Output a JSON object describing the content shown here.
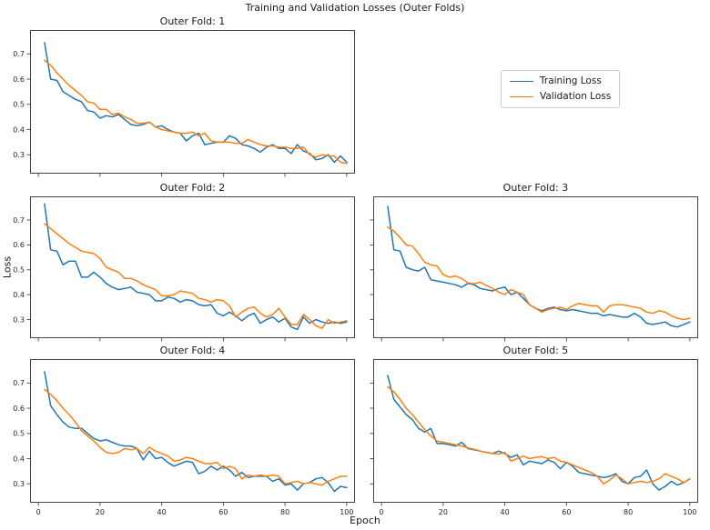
{
  "chart_data": {
    "type": "line",
    "suptitle": "Training and Validation Losses (Outer Folds)",
    "xlabel": "Epoch",
    "ylabel": "Loss",
    "grid": false,
    "legend": {
      "position": "figure upper right",
      "entries": [
        {
          "label": "Training Loss",
          "color": "#1f77b4"
        },
        {
          "label": "Validation Loss",
          "color": "#ff7f0e"
        }
      ]
    },
    "x": [
      2,
      4,
      6,
      8,
      10,
      12,
      14,
      16,
      18,
      20,
      22,
      24,
      26,
      28,
      30,
      32,
      34,
      36,
      38,
      40,
      42,
      44,
      46,
      48,
      50,
      52,
      54,
      56,
      58,
      60,
      62,
      64,
      66,
      68,
      70,
      72,
      74,
      76,
      78,
      80,
      82,
      84,
      86,
      88,
      90,
      92,
      94,
      96,
      98,
      100
    ],
    "axes": [
      {
        "title": "Outer Fold: 1",
        "xlim": [
          -2.7,
          102.7
        ],
        "ylim": [
          0.225,
          0.795
        ],
        "xticks": [
          0,
          20,
          40,
          60,
          80,
          100
        ],
        "yticks": [
          0.3,
          0.4,
          0.5,
          0.6,
          0.7
        ],
        "show_xtick_labels": false,
        "show_ytick_labels": true,
        "series": [
          {
            "name": "Training Loss",
            "color": "#1f77b4",
            "values": [
              0.745,
              0.6,
              0.595,
              0.55,
              0.535,
              0.52,
              0.51,
              0.475,
              0.47,
              0.445,
              0.455,
              0.45,
              0.46,
              0.44,
              0.42,
              0.415,
              0.42,
              0.43,
              0.41,
              0.415,
              0.4,
              0.39,
              0.385,
              0.355,
              0.375,
              0.385,
              0.34,
              0.345,
              0.35,
              0.35,
              0.375,
              0.365,
              0.34,
              0.335,
              0.325,
              0.31,
              0.33,
              0.34,
              0.325,
              0.325,
              0.305,
              0.34,
              0.315,
              0.305,
              0.28,
              0.285,
              0.3,
              0.27,
              0.295,
              0.27
            ]
          },
          {
            "name": "Validation Loss",
            "color": "#ff7f0e",
            "values": [
              0.675,
              0.655,
              0.625,
              0.6,
              0.575,
              0.555,
              0.535,
              0.51,
              0.505,
              0.48,
              0.48,
              0.46,
              0.465,
              0.45,
              0.44,
              0.425,
              0.425,
              0.43,
              0.41,
              0.4,
              0.395,
              0.39,
              0.385,
              0.385,
              0.39,
              0.375,
              0.385,
              0.355,
              0.35,
              0.35,
              0.35,
              0.345,
              0.345,
              0.36,
              0.35,
              0.34,
              0.335,
              0.335,
              0.33,
              0.33,
              0.325,
              0.325,
              0.33,
              0.3,
              0.29,
              0.3,
              0.295,
              0.295,
              0.27,
              0.265
            ]
          }
        ]
      },
      {
        "title": "Outer Fold: 2",
        "xlim": [
          -2.7,
          102.7
        ],
        "ylim": [
          0.225,
          0.795
        ],
        "xticks": [
          0,
          20,
          40,
          60,
          80,
          100
        ],
        "yticks": [
          0.3,
          0.4,
          0.5,
          0.6,
          0.7
        ],
        "show_xtick_labels": false,
        "show_ytick_labels": true,
        "series": [
          {
            "name": "Training Loss",
            "color": "#1f77b4",
            "values": [
              0.765,
              0.58,
              0.575,
              0.52,
              0.535,
              0.535,
              0.47,
              0.47,
              0.49,
              0.47,
              0.445,
              0.43,
              0.42,
              0.425,
              0.43,
              0.41,
              0.405,
              0.4,
              0.375,
              0.375,
              0.39,
              0.385,
              0.37,
              0.38,
              0.375,
              0.36,
              0.355,
              0.36,
              0.325,
              0.315,
              0.33,
              0.315,
              0.295,
              0.315,
              0.325,
              0.285,
              0.3,
              0.31,
              0.29,
              0.305,
              0.27,
              0.26,
              0.31,
              0.285,
              0.3,
              0.29,
              0.285,
              0.29,
              0.285,
              0.29
            ]
          },
          {
            "name": "Validation Loss",
            "color": "#ff7f0e",
            "values": [
              0.685,
              0.665,
              0.645,
              0.625,
              0.605,
              0.59,
              0.575,
              0.57,
              0.565,
              0.545,
              0.51,
              0.5,
              0.49,
              0.465,
              0.465,
              0.455,
              0.44,
              0.43,
              0.42,
              0.395,
              0.395,
              0.4,
              0.415,
              0.41,
              0.405,
              0.385,
              0.38,
              0.37,
              0.38,
              0.375,
              0.355,
              0.31,
              0.33,
              0.345,
              0.35,
              0.325,
              0.31,
              0.32,
              0.345,
              0.31,
              0.28,
              0.28,
              0.32,
              0.3,
              0.275,
              0.265,
              0.3,
              0.285,
              0.29,
              0.295
            ]
          }
        ]
      },
      {
        "title": "Outer Fold: 3",
        "xlim": [
          -2.7,
          102.7
        ],
        "ylim": [
          0.225,
          0.795
        ],
        "xticks": [
          0,
          20,
          40,
          60,
          80,
          100
        ],
        "yticks": [
          0.3,
          0.4,
          0.5,
          0.6,
          0.7
        ],
        "show_xtick_labels": false,
        "show_ytick_labels": false,
        "series": [
          {
            "name": "Training Loss",
            "color": "#1f77b4",
            "values": [
              0.755,
              0.58,
              0.575,
              0.51,
              0.5,
              0.495,
              0.51,
              0.46,
              0.455,
              0.45,
              0.445,
              0.44,
              0.43,
              0.445,
              0.44,
              0.425,
              0.42,
              0.415,
              0.425,
              0.43,
              0.4,
              0.41,
              0.385,
              0.36,
              0.345,
              0.335,
              0.345,
              0.35,
              0.34,
              0.335,
              0.34,
              0.335,
              0.33,
              0.325,
              0.325,
              0.315,
              0.32,
              0.315,
              0.31,
              0.31,
              0.325,
              0.31,
              0.285,
              0.28,
              0.285,
              0.29,
              0.275,
              0.27,
              0.28,
              0.29
            ]
          },
          {
            "name": "Validation Loss",
            "color": "#ff7f0e",
            "values": [
              0.672,
              0.655,
              0.63,
              0.6,
              0.595,
              0.565,
              0.53,
              0.52,
              0.515,
              0.48,
              0.47,
              0.475,
              0.465,
              0.447,
              0.444,
              0.45,
              0.437,
              0.425,
              0.41,
              0.4,
              0.42,
              0.41,
              0.4,
              0.36,
              0.345,
              0.33,
              0.34,
              0.345,
              0.35,
              0.34,
              0.355,
              0.365,
              0.36,
              0.355,
              0.355,
              0.33,
              0.355,
              0.36,
              0.36,
              0.355,
              0.35,
              0.345,
              0.33,
              0.325,
              0.335,
              0.33,
              0.315,
              0.305,
              0.3,
              0.305
            ]
          }
        ]
      },
      {
        "title": "Outer Fold: 4",
        "xlim": [
          -2.7,
          102.7
        ],
        "ylim": [
          0.225,
          0.795
        ],
        "xticks": [
          0,
          20,
          40,
          60,
          80,
          100
        ],
        "yticks": [
          0.3,
          0.4,
          0.5,
          0.6,
          0.7
        ],
        "show_xtick_labels": true,
        "show_ytick_labels": true,
        "series": [
          {
            "name": "Training Loss",
            "color": "#1f77b4",
            "values": [
              0.745,
              0.61,
              0.575,
              0.545,
              0.525,
              0.52,
              0.52,
              0.5,
              0.48,
              0.47,
              0.475,
              0.465,
              0.455,
              0.45,
              0.45,
              0.44,
              0.395,
              0.43,
              0.4,
              0.405,
              0.385,
              0.37,
              0.38,
              0.39,
              0.385,
              0.34,
              0.35,
              0.37,
              0.355,
              0.37,
              0.355,
              0.33,
              0.345,
              0.325,
              0.33,
              0.33,
              0.33,
              0.31,
              0.32,
              0.295,
              0.3,
              0.275,
              0.3,
              0.305,
              0.32,
              0.325,
              0.305,
              0.27,
              0.29,
              0.285
            ]
          },
          {
            "name": "Validation Loss",
            "color": "#ff7f0e",
            "values": [
              0.675,
              0.655,
              0.63,
              0.6,
              0.575,
              0.545,
              0.51,
              0.49,
              0.47,
              0.445,
              0.425,
              0.42,
              0.425,
              0.44,
              0.435,
              0.44,
              0.42,
              0.445,
              0.43,
              0.42,
              0.41,
              0.39,
              0.395,
              0.405,
              0.4,
              0.39,
              0.38,
              0.38,
              0.385,
              0.36,
              0.37,
              0.36,
              0.32,
              0.335,
              0.33,
              0.335,
              0.33,
              0.335,
              0.33,
              0.3,
              0.305,
              0.31,
              0.3,
              0.305,
              0.3,
              0.295,
              0.31,
              0.32,
              0.33,
              0.33
            ]
          }
        ]
      },
      {
        "title": "Outer Fold: 5",
        "xlim": [
          -2.7,
          102.7
        ],
        "ylim": [
          0.225,
          0.795
        ],
        "xticks": [
          0,
          20,
          40,
          60,
          80,
          100
        ],
        "yticks": [
          0.3,
          0.4,
          0.5,
          0.6,
          0.7
        ],
        "show_xtick_labels": true,
        "show_ytick_labels": false,
        "series": [
          {
            "name": "Training Loss",
            "color": "#1f77b4",
            "values": [
              0.73,
              0.635,
              0.605,
              0.575,
              0.555,
              0.52,
              0.505,
              0.52,
              0.46,
              0.46,
              0.455,
              0.45,
              0.465,
              0.44,
              0.435,
              0.43,
              0.425,
              0.42,
              0.43,
              0.42,
              0.405,
              0.415,
              0.375,
              0.39,
              0.385,
              0.38,
              0.395,
              0.385,
              0.36,
              0.385,
              0.37,
              0.345,
              0.34,
              0.335,
              0.33,
              0.325,
              0.33,
              0.34,
              0.31,
              0.3,
              0.325,
              0.33,
              0.355,
              0.3,
              0.275,
              0.29,
              0.31,
              0.295,
              0.305,
              0.32
            ]
          },
          {
            "name": "Validation Loss",
            "color": "#ff7f0e",
            "values": [
              0.685,
              0.665,
              0.635,
              0.6,
              0.575,
              0.545,
              0.515,
              0.49,
              0.47,
              0.465,
              0.46,
              0.455,
              0.45,
              0.443,
              0.437,
              0.43,
              0.425,
              0.42,
              0.418,
              0.425,
              0.39,
              0.4,
              0.41,
              0.4,
              0.405,
              0.408,
              0.4,
              0.405,
              0.39,
              0.385,
              0.375,
              0.365,
              0.355,
              0.345,
              0.33,
              0.3,
              0.315,
              0.335,
              0.32,
              0.3,
              0.305,
              0.31,
              0.305,
              0.31,
              0.32,
              0.34,
              0.33,
              0.32,
              0.305,
              0.32
            ]
          }
        ]
      }
    ]
  }
}
